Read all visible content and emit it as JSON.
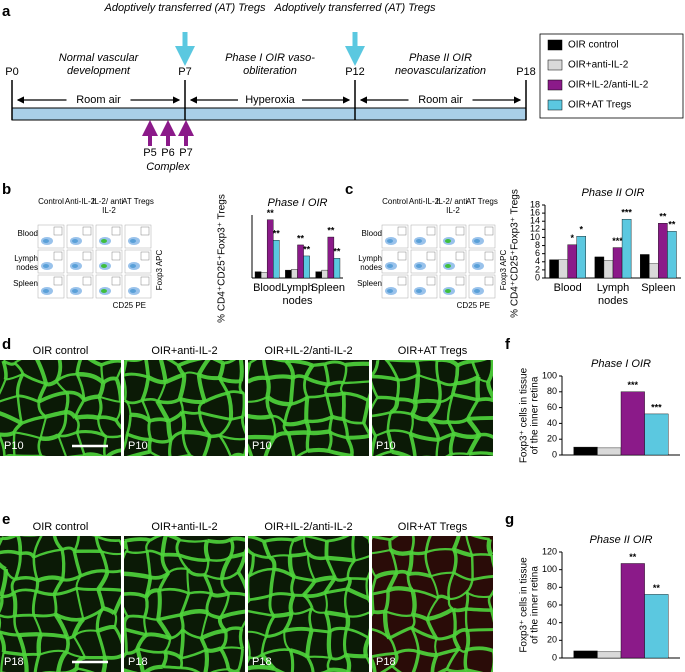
{
  "panel_labels": [
    "a",
    "b",
    "c",
    "d",
    "e",
    "f",
    "g"
  ],
  "timeline": {
    "transfers": [
      "Adoptively transferred (AT) Tregs",
      "Adoptively transferred (AT) Tregs"
    ],
    "points": [
      "P0",
      "P7",
      "P12",
      "P18"
    ],
    "phases": [
      "Normal vascular development",
      "Phase I OIR vaso-obliteration",
      "Phase II OIR neovascularization"
    ],
    "conditions": [
      "Room air",
      "Hyperoxia",
      "Room air"
    ],
    "complex_days": [
      "P5",
      "P6",
      "P7"
    ],
    "complex_label": "Complex"
  },
  "flow": {
    "columns": [
      "Control",
      "Anti-IL-2",
      "IL-2/ anti-IL-2",
      "AT Tregs"
    ],
    "rows": [
      "Blood",
      "Lymph nodes",
      "Spleen"
    ],
    "y_axis": "Foxp3 APC",
    "x_axis": "CD25 PE"
  },
  "retina": [
    {
      "columns": [
        "OIR control",
        "OIR+anti-IL-2",
        "OIR+IL-2/anti-IL-2",
        "OIR+AT Tregs"
      ],
      "day": "P10"
    },
    {
      "columns": [
        "OIR control",
        "OIR+anti-IL-2",
        "OIR+IL-2/anti-IL-2",
        "OIR+AT Tregs"
      ],
      "day": "P18"
    }
  ],
  "chart_data": [
    {
      "type": "bar",
      "title": "Phase I OIR",
      "ylabel": "% CD4⁺CD25⁺Foxp3⁺ Tregs",
      "categories": [
        "Blood",
        "Lymph nodes",
        "Spleen"
      ],
      "ylim": [
        0,
        40
      ],
      "series": [
        {
          "name": "OIR control",
          "color": "#000000",
          "values": [
            4,
            5,
            4
          ],
          "stars": [
            null,
            null,
            null
          ]
        },
        {
          "name": "OIR+anti-IL-2",
          "color": "#d9d9d9",
          "values": [
            3.5,
            5.5,
            5
          ],
          "stars": [
            null,
            null,
            null
          ]
        },
        {
          "name": "OIR+IL-2/anti-IL-2",
          "color": "#8b1a89",
          "values": [
            37,
            21,
            26
          ],
          "stars": [
            "**",
            "**",
            "**"
          ]
        },
        {
          "name": "OIR+AT Tregs",
          "color": "#5bc8e0",
          "values": [
            24,
            14,
            12.5
          ],
          "stars": [
            "**",
            "**",
            "**"
          ]
        }
      ]
    },
    {
      "type": "bar",
      "title": "Phase II OIR",
      "ylabel": "% CD4⁺CD25⁺Foxp3⁺ Tregs",
      "categories": [
        "Blood",
        "Lymph nodes",
        "Spleen"
      ],
      "ylim": [
        0,
        18
      ],
      "yticks": [
        0,
        2,
        4,
        6,
        8,
        10,
        12,
        14,
        16,
        18
      ],
      "series": [
        {
          "name": "OIR control",
          "color": "#000000",
          "values": [
            4.5,
            5.2,
            5.8
          ],
          "stars": [
            null,
            null,
            null
          ]
        },
        {
          "name": "OIR+anti-IL-2",
          "color": "#d9d9d9",
          "values": [
            4.5,
            4.3,
            3.5
          ],
          "stars": [
            null,
            null,
            null
          ]
        },
        {
          "name": "OIR+IL-2/anti-IL-2",
          "color": "#8b1a89",
          "values": [
            8.2,
            7.5,
            13.5
          ],
          "stars": [
            "*",
            "***",
            "**"
          ]
        },
        {
          "name": "OIR+AT Tregs",
          "color": "#5bc8e0",
          "values": [
            10.3,
            14.5,
            11.5
          ],
          "stars": [
            "*",
            "***",
            "**"
          ]
        }
      ]
    },
    {
      "type": "bar",
      "title": "Phase I OIR",
      "ylabel": [
        "Foxp3⁺ cells in tissue",
        "of the inner retina"
      ],
      "categories": [
        null
      ],
      "ylim": [
        0,
        100
      ],
      "yticks": [
        0,
        20,
        40,
        60,
        80,
        100
      ],
      "series": [
        {
          "name": "OIR control",
          "color": "#000000",
          "values": [
            10
          ],
          "stars": [
            null
          ]
        },
        {
          "name": "OIR+anti-IL-2",
          "color": "#d9d9d9",
          "values": [
            9
          ],
          "stars": [
            null
          ]
        },
        {
          "name": "OIR+IL-2/anti-IL-2",
          "color": "#8b1a89",
          "values": [
            80
          ],
          "stars": [
            "***"
          ]
        },
        {
          "name": "OIR+AT Tregs",
          "color": "#5bc8e0",
          "values": [
            52
          ],
          "stars": [
            "***"
          ]
        }
      ]
    },
    {
      "type": "bar",
      "title": "Phase II OIR",
      "ylabel": [
        "Foxp3⁺ cells in tissue",
        "of the inner retina"
      ],
      "categories": [
        null
      ],
      "ylim": [
        0,
        120
      ],
      "yticks": [
        0,
        20,
        40,
        60,
        80,
        100,
        120
      ],
      "series": [
        {
          "name": "OIR control",
          "color": "#000000",
          "values": [
            8
          ],
          "stars": [
            null
          ]
        },
        {
          "name": "OIR+anti-IL-2",
          "color": "#d9d9d9",
          "values": [
            7
          ],
          "stars": [
            null
          ]
        },
        {
          "name": "OIR+IL-2/anti-IL-2",
          "color": "#8b1a89",
          "values": [
            107
          ],
          "stars": [
            "**"
          ]
        },
        {
          "name": "OIR+AT Tregs",
          "color": "#5bc8e0",
          "values": [
            72
          ],
          "stars": [
            "**"
          ]
        }
      ]
    }
  ]
}
